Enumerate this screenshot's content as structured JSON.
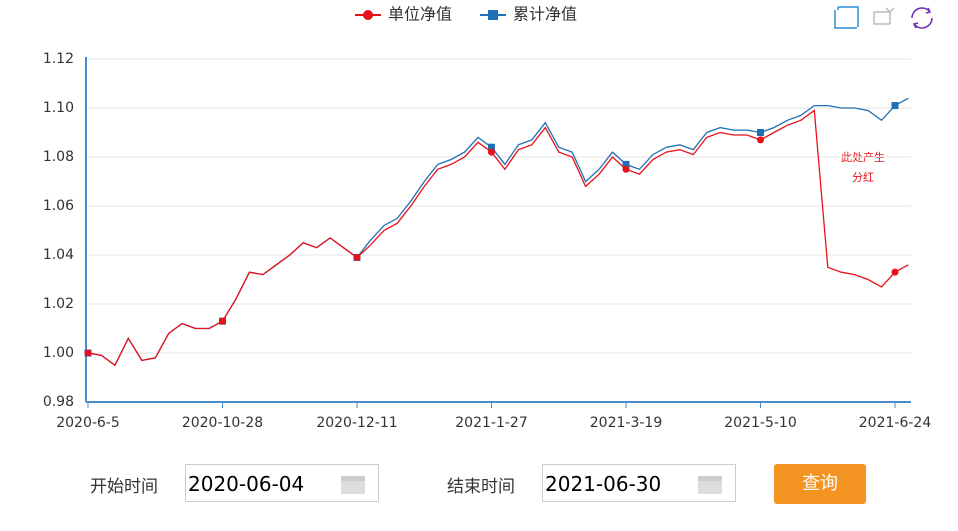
{
  "chart_data": {
    "type": "line",
    "legend": "top",
    "grid": true,
    "categories": [
      "2020-6-5",
      null,
      null,
      null,
      null,
      null,
      null,
      null,
      null,
      null,
      "2020-10-28",
      null,
      null,
      null,
      null,
      null,
      null,
      null,
      null,
      null,
      "2020-12-11",
      null,
      null,
      null,
      null,
      null,
      null,
      null,
      null,
      null,
      "2021-1-27",
      null,
      null,
      null,
      null,
      null,
      null,
      null,
      null,
      null,
      "2021-3-19",
      null,
      null,
      null,
      null,
      null,
      null,
      null,
      null,
      null,
      "2021-5-10",
      null,
      null,
      null,
      null,
      null,
      null,
      null,
      null,
      null,
      "2021-6-24",
      null
    ],
    "series": [
      {
        "name": "单位净值",
        "color": "#e8111a",
        "marker": "circle",
        "values": [
          1.0,
          0.999,
          0.995,
          1.006,
          0.997,
          0.998,
          1.008,
          1.012,
          1.01,
          1.01,
          1.013,
          1.022,
          1.033,
          1.032,
          1.036,
          1.04,
          1.045,
          1.043,
          1.047,
          1.043,
          1.039,
          1.044,
          1.05,
          1.053,
          1.06,
          1.068,
          1.075,
          1.077,
          1.08,
          1.086,
          1.082,
          1.075,
          1.083,
          1.085,
          1.092,
          1.082,
          1.08,
          1.068,
          1.073,
          1.08,
          1.075,
          1.073,
          1.079,
          1.082,
          1.083,
          1.081,
          1.088,
          1.09,
          1.089,
          1.089,
          1.087,
          1.09,
          1.093,
          1.095,
          1.099,
          1.035,
          1.033,
          1.032,
          1.03,
          1.027,
          1.033,
          1.036
        ]
      },
      {
        "name": "累计净值",
        "color": "#1f6fb5",
        "marker": "square",
        "values": [
          1.0,
          0.999,
          0.995,
          1.006,
          0.997,
          0.998,
          1.008,
          1.012,
          1.01,
          1.01,
          1.013,
          1.022,
          1.033,
          1.032,
          1.036,
          1.04,
          1.045,
          1.043,
          1.047,
          1.043,
          1.039,
          1.046,
          1.052,
          1.055,
          1.062,
          1.07,
          1.077,
          1.079,
          1.082,
          1.088,
          1.084,
          1.077,
          1.085,
          1.087,
          1.094,
          1.084,
          1.082,
          1.07,
          1.075,
          1.082,
          1.077,
          1.075,
          1.081,
          1.084,
          1.085,
          1.083,
          1.09,
          1.092,
          1.091,
          1.091,
          1.09,
          1.092,
          1.095,
          1.097,
          1.101,
          1.101,
          1.1,
          1.1,
          1.099,
          1.095,
          1.101,
          1.104
        ]
      }
    ],
    "ylim": [
      0.98,
      1.12
    ],
    "yticks": [
      0.98,
      {
        "value": 1.0,
        "label": "1.00"
      },
      1.02,
      1.04,
      1.06,
      1.08,
      {
        "value": 1.1,
        "label": "1.10"
      },
      1.12
    ],
    "annotation": [
      "此处产生",
      "分红"
    ]
  },
  "controls": {
    "start_label": "开始时间",
    "start_value": "2020-06-04",
    "end_label": "结束时间",
    "end_value": "2021-06-30",
    "button": "查询"
  }
}
